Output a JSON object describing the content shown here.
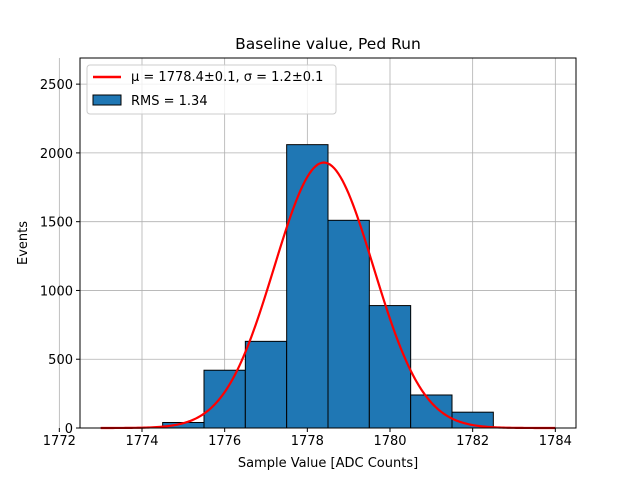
{
  "chart_data": {
    "type": "bar",
    "title": "Baseline value, Ped Run",
    "xlabel": "Sample Value [ADC Counts]",
    "ylabel": "Events",
    "xlim": [
      1772.5,
      1784.5
    ],
    "ylim": [
      0,
      2690
    ],
    "xticks": [
      1772,
      1774,
      1776,
      1778,
      1780,
      1782,
      1784
    ],
    "yticks": [
      0,
      500,
      1000,
      1500,
      2000,
      2500
    ],
    "grid": true,
    "legend_position": "top-left",
    "bins": [
      {
        "left": 1774.5,
        "right": 1775.5,
        "count": 40
      },
      {
        "left": 1775.5,
        "right": 1776.5,
        "count": 420
      },
      {
        "left": 1776.5,
        "right": 1777.5,
        "count": 630
      },
      {
        "left": 1777.5,
        "right": 1778.5,
        "count": 2060
      },
      {
        "left": 1778.5,
        "right": 1779.5,
        "count": 1510
      },
      {
        "left": 1779.5,
        "right": 1780.5,
        "count": 890
      },
      {
        "left": 1780.5,
        "right": 1781.5,
        "count": 240
      },
      {
        "left": 1781.5,
        "right": 1782.5,
        "count": 115
      }
    ],
    "fit": {
      "x_range": [
        1773,
        1784
      ],
      "mu": 1778.4,
      "sigma": 1.2,
      "amplitude": 1930
    },
    "colors": {
      "bars": "#1f77b4",
      "bar_edge": "#000000",
      "fit": "#ff0000",
      "grid": "#b0b0b0"
    },
    "legend": [
      {
        "kind": "line",
        "label": "μ = 1778.4±0.1, σ = 1.2±0.1",
        "color": "#ff0000"
      },
      {
        "kind": "patch",
        "label": "RMS = 1.34",
        "color": "#1f77b4"
      }
    ]
  }
}
